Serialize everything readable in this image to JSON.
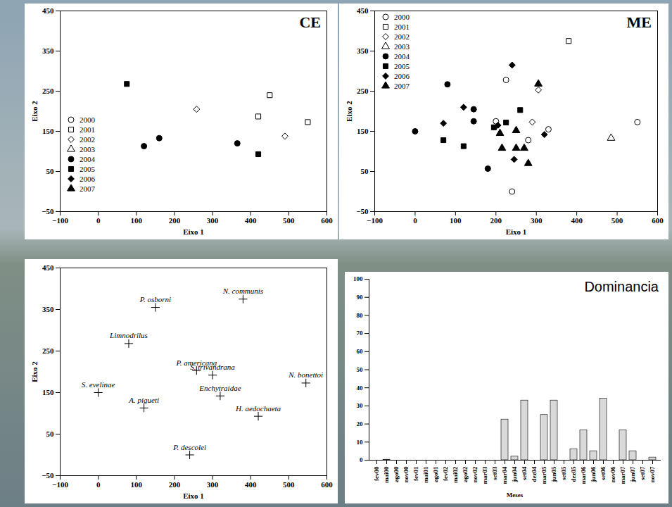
{
  "chart_data": [
    {
      "type": "scatter",
      "title": "CE",
      "x_label": "Eixo 1",
      "y_label": "Eixo 2",
      "xlim": [
        -100,
        600
      ],
      "ylim": [
        -50,
        450
      ],
      "xticks": [
        -100,
        0,
        100,
        200,
        300,
        400,
        500,
        600
      ],
      "yticks": [
        -50,
        50,
        150,
        250,
        350,
        450
      ],
      "legend": "left",
      "series": [
        {
          "name": "2000",
          "marker": "circle-open",
          "color": "#000000",
          "x": [],
          "y": []
        },
        {
          "name": "2001",
          "marker": "square-open",
          "color": "#000000",
          "x": [
            450,
            420,
            550
          ],
          "y": [
            240,
            187,
            173
          ]
        },
        {
          "name": "2002",
          "marker": "diamond-open",
          "color": "#000000",
          "x": [
            258,
            490
          ],
          "y": [
            205,
            138
          ]
        },
        {
          "name": "2003",
          "marker": "triangle-open",
          "color": "#000000",
          "x": [],
          "y": []
        },
        {
          "name": "2004",
          "marker": "circle",
          "color": "#000000",
          "x": [
            120,
            160,
            365
          ],
          "y": [
            113,
            133,
            120
          ]
        },
        {
          "name": "2005",
          "marker": "square",
          "color": "#000000",
          "x": [
            75,
            420
          ],
          "y": [
            268,
            93
          ]
        },
        {
          "name": "2006",
          "marker": "diamond",
          "color": "#000000",
          "x": [],
          "y": []
        },
        {
          "name": "2007",
          "marker": "triangle",
          "color": "#000000",
          "x": [],
          "y": []
        }
      ]
    },
    {
      "type": "scatter",
      "title": "ME",
      "x_label": "Eixo 1",
      "y_label": "Eixo 2",
      "xlim": [
        -100,
        600
      ],
      "ylim": [
        -50,
        450
      ],
      "xticks": [
        -100,
        0,
        100,
        200,
        300,
        400,
        500,
        600
      ],
      "yticks": [
        -50,
        50,
        150,
        250,
        350,
        450
      ],
      "legend": "top-left",
      "series": [
        {
          "name": "2000",
          "marker": "circle-open",
          "color": "#000000",
          "x": [
            225,
            200,
            330,
            280,
            240,
            550
          ],
          "y": [
            278,
            175,
            155,
            128,
            0,
            173
          ]
        },
        {
          "name": "2001",
          "marker": "square-open",
          "color": "#000000",
          "x": [
            380
          ],
          "y": [
            375
          ]
        },
        {
          "name": "2002",
          "marker": "diamond-open",
          "color": "#000000",
          "x": [
            305,
            290
          ],
          "y": [
            253,
            173
          ]
        },
        {
          "name": "2003",
          "marker": "triangle-open",
          "color": "#000000",
          "x": [
            485
          ],
          "y": [
            133
          ]
        },
        {
          "name": "2004",
          "marker": "circle",
          "color": "#000000",
          "x": [
            0,
            80,
            145,
            145,
            180
          ],
          "y": [
            150,
            267,
            205,
            175,
            57
          ]
        },
        {
          "name": "2005",
          "marker": "square",
          "color": "#000000",
          "x": [
            70,
            120,
            195,
            225,
            260
          ],
          "y": [
            128,
            113,
            160,
            172,
            203
          ]
        },
        {
          "name": "2006",
          "marker": "diamond",
          "color": "#000000",
          "x": [
            240,
            120,
            70,
            205,
            320,
            245
          ],
          "y": [
            315,
            210,
            170,
            165,
            142,
            80
          ]
        },
        {
          "name": "2007",
          "marker": "triangle",
          "color": "#000000",
          "x": [
            305,
            210,
            215,
            250,
            250,
            270,
            280
          ],
          "y": [
            268,
            145,
            108,
            152,
            108,
            108,
            70
          ]
        }
      ]
    },
    {
      "type": "scatter",
      "x_label": "Eixo 1",
      "y_label": "Eixo 2",
      "xlim": [
        -100,
        600
      ],
      "ylim": [
        -50,
        450
      ],
      "xticks": [
        -100,
        0,
        100,
        200,
        300,
        400,
        500,
        600
      ],
      "yticks": [
        -50,
        50,
        150,
        250,
        350,
        450
      ],
      "marker": "plus",
      "color": "#000000",
      "labels": [
        "P. osborni",
        "N. communis",
        "Limnodrilus",
        "P. americana",
        "S. trivandrana",
        "N. bonettoi",
        "S. evelinae",
        "A. pigueti",
        "Enchytraidae",
        "H. aedochaeta",
        "P. descolei"
      ],
      "x": [
        150,
        380,
        80,
        258,
        300,
        545,
        0,
        120,
        320,
        420,
        240
      ],
      "y": [
        355,
        375,
        268,
        203,
        192,
        173,
        150,
        113,
        142,
        93,
        0
      ]
    },
    {
      "type": "bar",
      "title": "Dominancia",
      "x_label": "Meses",
      "categories": [
        "fev00",
        "mai00",
        "ago00",
        "nov00",
        "fev01",
        "mai01",
        "ago01",
        "fev02",
        "mai02",
        "ago02",
        "nov02",
        "mar03",
        "set03",
        "mar04",
        "jun04",
        "set04",
        "dez04",
        "mar05",
        "jun05",
        "set05",
        "dez05",
        "mar06",
        "jun06",
        "set06",
        "nov06",
        "mar07",
        "jun07",
        "set07",
        "nov07"
      ],
      "values": [
        0,
        0.3,
        0,
        0,
        0,
        0,
        0,
        0,
        0,
        0,
        0,
        0,
        0,
        22.5,
        2,
        33,
        0,
        25,
        33,
        0,
        6,
        16.5,
        5,
        34,
        0,
        16.5,
        5,
        0,
        1.5
      ],
      "color": "#d9d9d9",
      "ylim": [
        0,
        100
      ],
      "yticks": [
        0,
        10,
        20,
        30,
        40,
        50,
        60,
        70,
        80,
        90,
        100
      ]
    }
  ]
}
